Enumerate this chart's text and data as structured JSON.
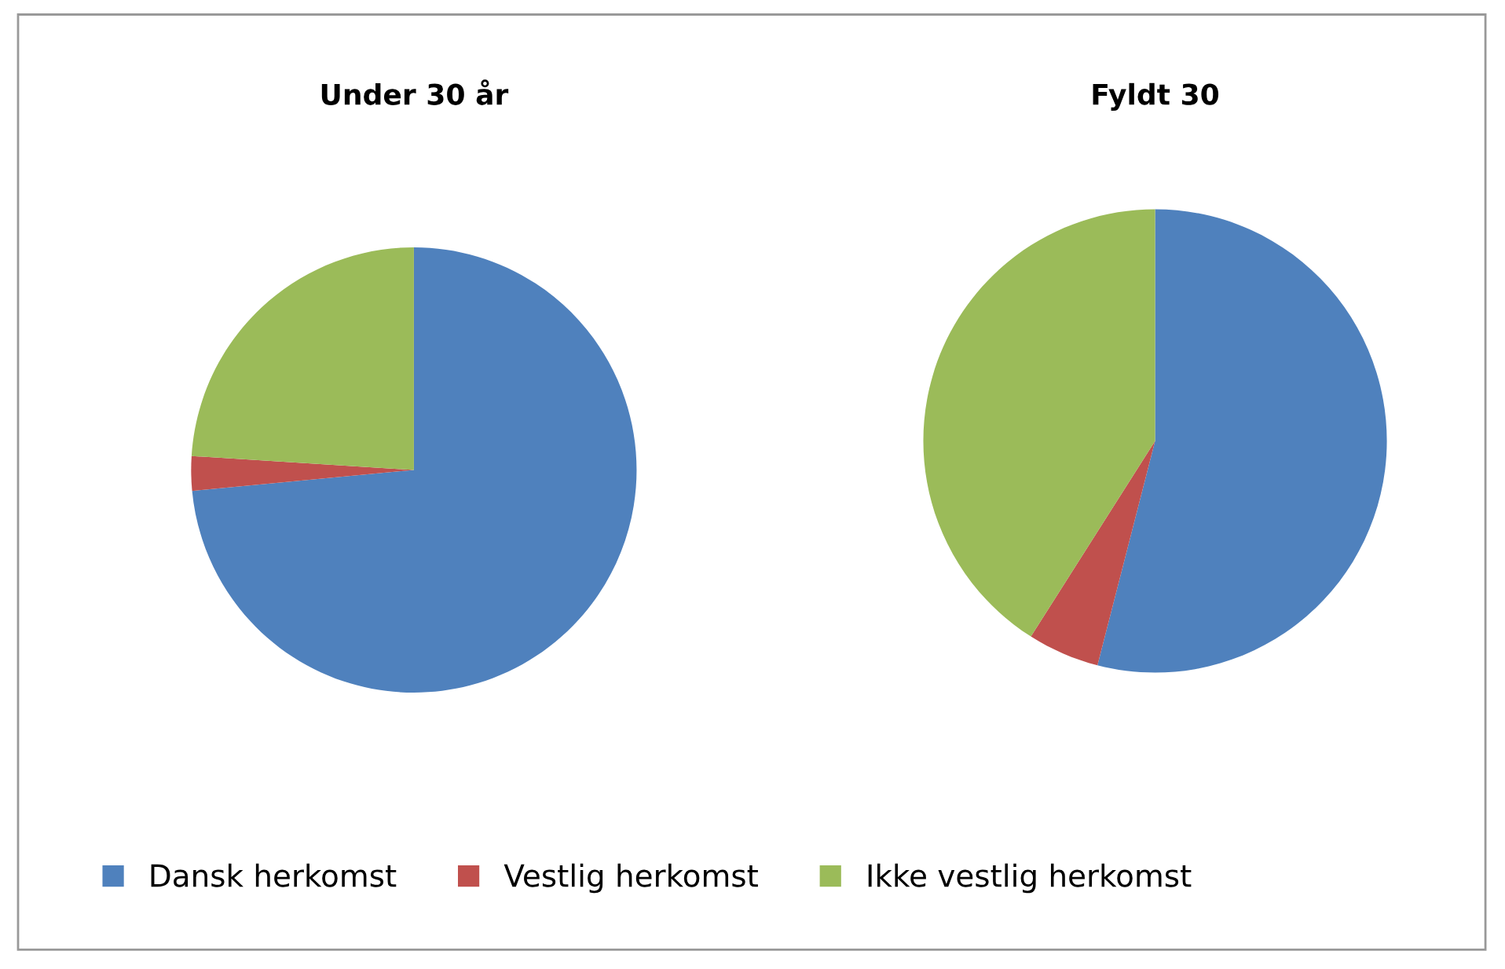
{
  "chart_data": [
    {
      "type": "pie",
      "title": "Under 30 år",
      "categories": [
        "Dansk herkomst",
        "Vestlig herkomst",
        "Ikke vestlig herkomst"
      ],
      "values": [
        73.5,
        2.5,
        24
      ],
      "colors": [
        "#4f81bd",
        "#c0504d",
        "#9bbb59"
      ],
      "legend": "bottom"
    },
    {
      "type": "pie",
      "title": "Fyldt 30",
      "categories": [
        null,
        null,
        null
      ],
      "values": [
        54,
        5,
        41
      ],
      "colors": [
        "#4f81bd",
        "#c0504d",
        "#9bbb59"
      ]
    }
  ]
}
